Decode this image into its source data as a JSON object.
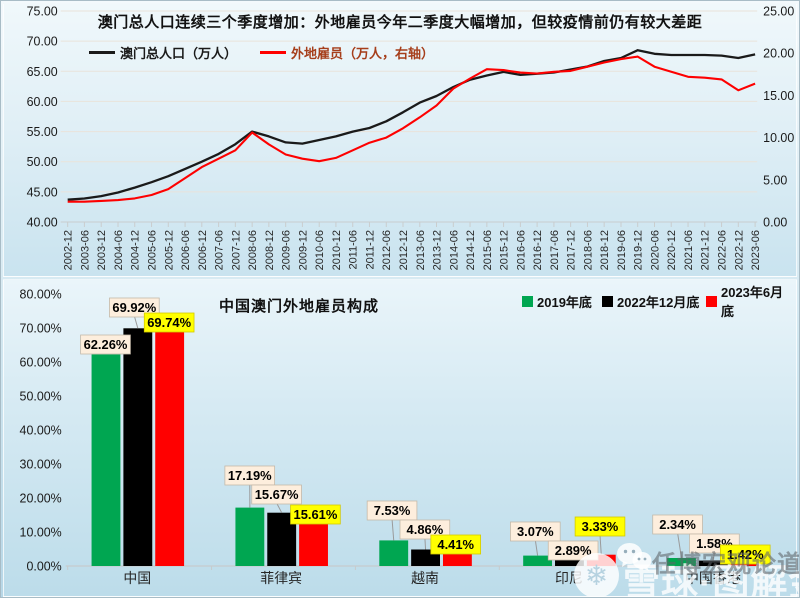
{
  "top_chart": {
    "title": "澳门总人口连续三个季度增加：外地雇员今年二季度大幅增加，但较疫情前仍有较大差距",
    "legend": [
      {
        "label": "澳门总人口（万人）",
        "color": "#1a1a1a",
        "text_color": "#1a1a1a"
      },
      {
        "label": "外地雇员（万人，右轴）",
        "color": "#fe0000",
        "text_color": "#a63e1b"
      }
    ]
  },
  "bottom_chart": {
    "title": "中国澳门外地雇员构成",
    "legend": [
      {
        "label": "2019年底",
        "color": "#00a651"
      },
      {
        "label": "2022年12月底",
        "color": "#000000"
      },
      {
        "label": "2023年6月底",
        "color": "#ff0000"
      }
    ]
  },
  "watermark": {
    "overlay_text": "任博宏观论道",
    "brand_text": "雪球·图解金融",
    "brand_glyph": "❄"
  },
  "chart_data": [
    {
      "type": "line",
      "title": "澳门总人口连续三个季度增加：外地雇员今年二季度大幅增加，但较疫情前仍有较大差距",
      "x": [
        "2002-12",
        "2003-06",
        "2003-12",
        "2004-06",
        "2004-12",
        "2005-06",
        "2005-12",
        "2006-06",
        "2006-12",
        "2007-06",
        "2007-12",
        "2008-06",
        "2008-12",
        "2009-06",
        "2009-12",
        "2010-06",
        "2010-12",
        "2011-06",
        "2011-12",
        "2012-06",
        "2012-12",
        "2013-06",
        "2013-12",
        "2014-06",
        "2014-12",
        "2015-06",
        "2015-12",
        "2016-06",
        "2016-12",
        "2017-06",
        "2017-12",
        "2018-06",
        "2018-12",
        "2019-06",
        "2019-12",
        "2020-06",
        "2020-12",
        "2021-06",
        "2021-12",
        "2022-06",
        "2022-12",
        "2023-06"
      ],
      "series": [
        {
          "name": "澳门总人口（万人）",
          "axis": "left",
          "color": "#1a1a1a",
          "values": [
            43.7,
            43.9,
            44.3,
            44.9,
            45.7,
            46.6,
            47.6,
            48.8,
            50.0,
            51.3,
            52.9,
            55.0,
            54.2,
            53.2,
            53.0,
            53.6,
            54.2,
            55.0,
            55.6,
            56.7,
            58.2,
            59.8,
            60.9,
            62.4,
            63.6,
            64.3,
            64.9,
            64.4,
            64.6,
            64.8,
            65.3,
            65.8,
            66.7,
            67.2,
            68.5,
            67.9,
            67.7,
            67.7,
            67.7,
            67.6,
            67.2,
            67.8
          ]
        },
        {
          "name": "外地雇员（万人，右轴）",
          "axis": "right",
          "color": "#fe0000",
          "values": [
            2.4,
            2.4,
            2.5,
            2.6,
            2.8,
            3.2,
            3.9,
            5.2,
            6.5,
            7.5,
            8.5,
            10.6,
            9.2,
            8.0,
            7.5,
            7.2,
            7.6,
            8.5,
            9.4,
            10.0,
            11.1,
            12.4,
            13.8,
            15.8,
            17.0,
            18.1,
            18.0,
            17.7,
            17.6,
            17.8,
            17.9,
            18.4,
            18.9,
            19.3,
            19.6,
            18.4,
            17.8,
            17.2,
            17.1,
            16.9,
            15.6,
            16.4
          ]
        }
      ],
      "left_axis": {
        "min": 40,
        "max": 75,
        "step": 5
      },
      "right_axis": {
        "min": 0,
        "max": 25,
        "step": 5
      },
      "grid": "horizontal",
      "legend_position": "top-left"
    },
    {
      "type": "bar",
      "title": "中国澳门外地雇员构成",
      "categories": [
        "中国",
        "菲律宾",
        "越南",
        "印尼",
        "中国香港"
      ],
      "series": [
        {
          "name": "2019年底",
          "color": "#00a651",
          "label_bg": "#fdeedd",
          "values": [
            62.26,
            17.19,
            7.53,
            3.07,
            2.34
          ]
        },
        {
          "name": "2022年12月底",
          "color": "#000000",
          "label_bg": "#fdeedd",
          "values": [
            69.92,
            15.67,
            4.86,
            2.89,
            1.58
          ]
        },
        {
          "name": "2023年6月底",
          "color": "#ff0000",
          "label_bg": "#ffff00",
          "values": [
            69.74,
            15.61,
            4.41,
            3.33,
            1.42
          ]
        }
      ],
      "ylim": [
        0,
        80
      ],
      "ytick_step": 10,
      "value_label_format": "0.00%",
      "legend_position": "top-right"
    }
  ]
}
